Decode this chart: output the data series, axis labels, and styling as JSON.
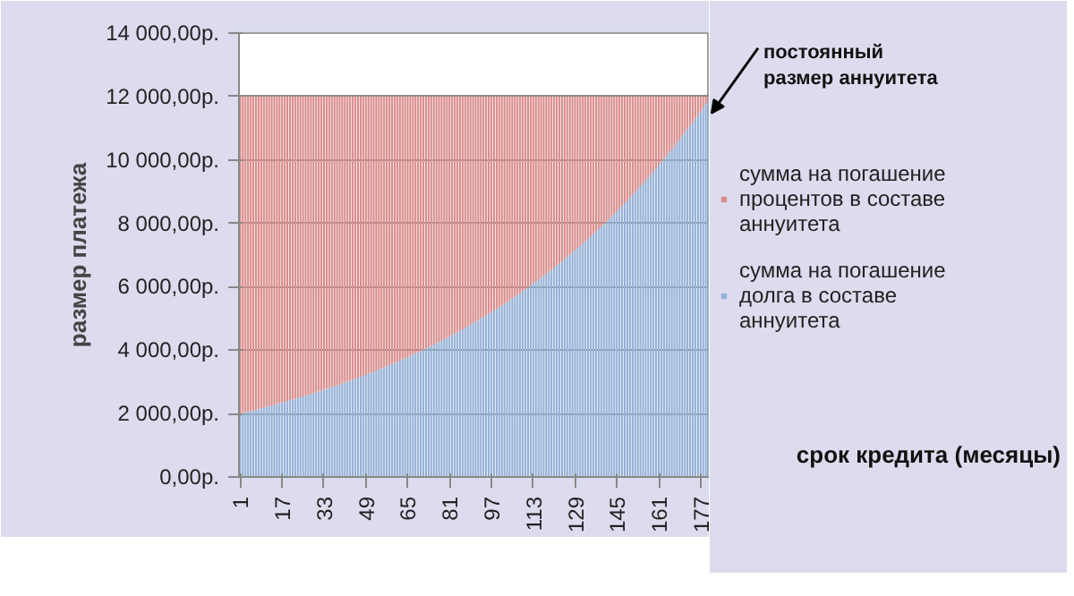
{
  "chart_data": {
    "type": "bar",
    "stacked": true,
    "ylabel": "размер платежа",
    "xlabel": "срок кредита (месяцы)",
    "categories": [
      "1",
      null,
      null,
      null,
      null,
      null,
      null,
      null,
      null,
      null,
      null,
      null,
      null,
      null,
      null,
      null,
      "17",
      null,
      null,
      null,
      null,
      null,
      null,
      null,
      null,
      null,
      null,
      null,
      null,
      null,
      null,
      null,
      "33",
      null,
      null,
      null,
      null,
      null,
      null,
      null,
      null,
      null,
      null,
      null,
      null,
      null,
      null,
      null,
      "49",
      null,
      null,
      null,
      null,
      null,
      null,
      null,
      null,
      null,
      null,
      null,
      null,
      null,
      null,
      null,
      "65",
      null,
      null,
      null,
      null,
      null,
      null,
      null,
      null,
      null,
      null,
      null,
      null,
      null,
      null,
      null,
      "81",
      null,
      null,
      null,
      null,
      null,
      null,
      null,
      null,
      null,
      null,
      null,
      null,
      null,
      null,
      null,
      "97",
      null,
      null,
      null,
      null,
      null,
      null,
      null,
      null,
      null,
      null,
      null,
      null,
      null,
      null,
      null,
      "113",
      null,
      null,
      null,
      null,
      null,
      null,
      null,
      null,
      null,
      null,
      null,
      null,
      null,
      null,
      null,
      "129",
      null,
      null,
      null,
      null,
      null,
      null,
      null,
      null,
      null,
      null,
      null,
      null,
      null,
      null,
      null,
      "145",
      null,
      null,
      null,
      null,
      null,
      null,
      null,
      null,
      null,
      null,
      null,
      null,
      null,
      null,
      null,
      "161",
      null,
      null,
      null,
      null,
      null,
      null,
      null,
      null,
      null,
      null,
      null,
      null,
      null,
      null,
      null,
      "177",
      null,
      null,
      null
    ],
    "series": [
      {
        "name": "сумма на погашение долга в составе аннуитета",
        "color": "#95b1d6",
        "values": [
          2000,
          2020,
          2040,
          2060,
          2080,
          2100,
          2120,
          2140,
          2170,
          2190,
          2210,
          2230,
          2250,
          2280,
          2300,
          2320,
          2350,
          2370,
          2390,
          2420,
          2440,
          2460,
          2490,
          2510,
          2540,
          2560,
          2590,
          2620,
          2640,
          2670,
          2700,
          2720,
          2750,
          2780,
          2810,
          2830,
          2860,
          2890,
          2920,
          2950,
          2980,
          3010,
          3040,
          3070,
          3100,
          3130,
          3160,
          3190,
          3220,
          3260,
          3290,
          3320,
          3360,
          3390,
          3420,
          3460,
          3490,
          3530,
          3560,
          3600,
          3630,
          3670,
          3710,
          3740,
          3780,
          3820,
          3860,
          3900,
          3930,
          3970,
          4010,
          4050,
          4090,
          4140,
          4180,
          4220,
          4260,
          4300,
          4350,
          4390,
          4430,
          4480,
          4520,
          4570,
          4610,
          4660,
          4710,
          4750,
          4800,
          4850,
          4900,
          4950,
          5000,
          5050,
          5100,
          5150,
          5200,
          5250,
          5300,
          5360,
          5410,
          5460,
          5520,
          5570,
          5630,
          5690,
          5740,
          5800,
          5860,
          5920,
          5980,
          6040,
          6100,
          6160,
          6220,
          6280,
          6340,
          6410,
          6470,
          6540,
          6600,
          6670,
          6730,
          6800,
          6870,
          6940,
          7010,
          7080,
          7150,
          7220,
          7290,
          7360,
          7440,
          7510,
          7590,
          7660,
          7740,
          7820,
          7900,
          7970,
          8050,
          8130,
          8220,
          8300,
          8380,
          8470,
          8550,
          8640,
          8720,
          8810,
          8900,
          8990,
          9080,
          9170,
          9260,
          9350,
          9440,
          9540,
          9630,
          9730,
          9830,
          9930,
          10030,
          10130,
          10230,
          10330,
          10430,
          10540,
          10640,
          10750,
          10860,
          10960,
          11070,
          11180,
          11300,
          11410,
          11520,
          11640,
          11760,
          11870
        ]
      },
      {
        "name": "сумма на погашение процентов в составе аннуитета",
        "color": "#d88e8c",
        "values": [
          10000,
          9980,
          9960,
          9940,
          9920,
          9900,
          9880,
          9860,
          9830,
          9810,
          9790,
          9770,
          9750,
          9720,
          9700,
          9680,
          9650,
          9630,
          9610,
          9580,
          9560,
          9540,
          9510,
          9490,
          9460,
          9440,
          9410,
          9380,
          9360,
          9330,
          9300,
          9280,
          9250,
          9220,
          9190,
          9170,
          9140,
          9110,
          9080,
          9050,
          9020,
          8990,
          8960,
          8930,
          8900,
          8870,
          8840,
          8810,
          8780,
          8740,
          8710,
          8680,
          8640,
          8610,
          8580,
          8540,
          8510,
          8470,
          8440,
          8400,
          8370,
          8330,
          8290,
          8260,
          8220,
          8180,
          8140,
          8100,
          8070,
          8030,
          7990,
          7950,
          7910,
          7860,
          7820,
          7780,
          7740,
          7700,
          7650,
          7610,
          7570,
          7520,
          7480,
          7430,
          7390,
          7340,
          7290,
          7250,
          7200,
          7150,
          7100,
          7050,
          7000,
          6950,
          6900,
          6850,
          6800,
          6750,
          6700,
          6640,
          6590,
          6540,
          6480,
          6430,
          6370,
          6310,
          6260,
          6200,
          6140,
          6080,
          6020,
          5960,
          5900,
          5840,
          5780,
          5720,
          5660,
          5590,
          5530,
          5460,
          5400,
          5330,
          5270,
          5200,
          5130,
          5060,
          4990,
          4920,
          4850,
          4780,
          4710,
          4640,
          4560,
          4490,
          4410,
          4340,
          4260,
          4180,
          4100,
          4030,
          3950,
          3870,
          3780,
          3700,
          3620,
          3530,
          3450,
          3360,
          3280,
          3190,
          3100,
          3010,
          2920,
          2830,
          2740,
          2650,
          2560,
          2460,
          2370,
          2270,
          2170,
          2070,
          1970,
          1870,
          1770,
          1670,
          1570,
          1460,
          1360,
          1250,
          1140,
          1040,
          930,
          820,
          700,
          590,
          480,
          360,
          240,
          130
        ]
      }
    ],
    "ylim": [
      0,
      14000
    ],
    "yticks": [
      {
        "value": 0,
        "label": "0,00р."
      },
      {
        "value": 2000,
        "label": "2 000,00р."
      },
      {
        "value": 4000,
        "label": "4 000,00р."
      },
      {
        "value": 6000,
        "label": "6 000,00р."
      },
      {
        "value": 8000,
        "label": "8 000,00р."
      },
      {
        "value": 10000,
        "label": "10 000,00р."
      },
      {
        "value": 12000,
        "label": "12 000,00р."
      },
      {
        "value": 14000,
        "label": "14 000,00р."
      }
    ],
    "grid": "y",
    "legend": "right",
    "annotations": [
      "постоянный размер аннуитета"
    ]
  }
}
